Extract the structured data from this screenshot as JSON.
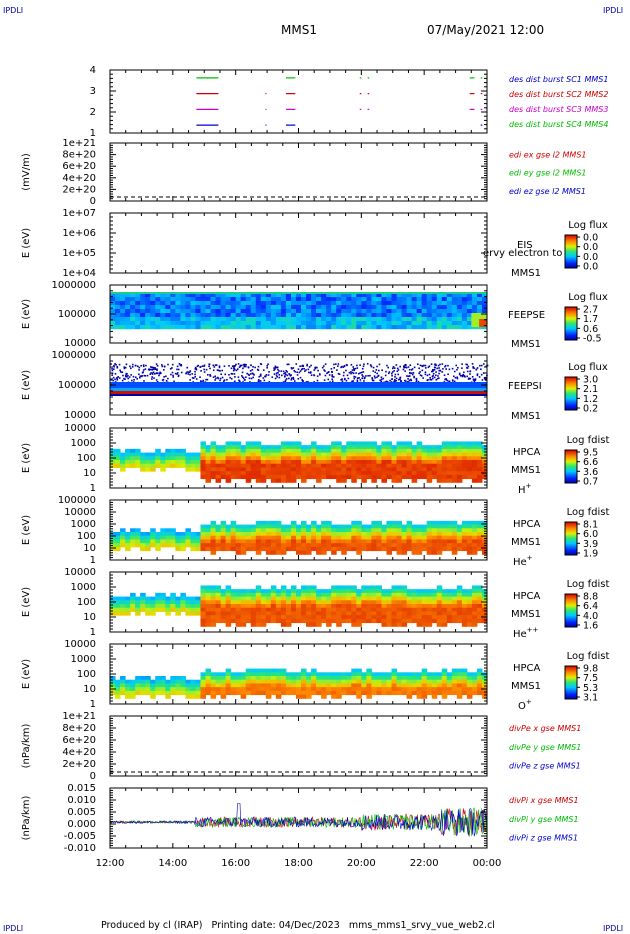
{
  "page": {
    "corner_label": "IPDLI",
    "spacecraft": "MMS1",
    "datetime": "07/May/2021 12:00",
    "footer": "Produced by cl (IRAP)   Printing date: 04/Dec/2023   mms_mms1_srvy_vue_web2.cl"
  },
  "colors": {
    "mms1": "#0000cc",
    "mms2": "#cc0000",
    "mms3": "#cc00cc",
    "mms4": "#00bb00"
  },
  "chart_data": [
    {
      "type": "line",
      "id": "burst",
      "ylabel": "",
      "yticks": [
        "1",
        "2",
        "3",
        "4"
      ],
      "ylim": [
        0.5,
        4.5
      ],
      "legend": [
        {
          "text": "des dist burst SC1 MMS1",
          "color": "#0000cc"
        },
        {
          "text": "des dist burst SC2 MMS2",
          "color": "#cc0000"
        },
        {
          "text": "des dist burst SC3 MMS3",
          "color": "#cc00cc"
        },
        {
          "text": "des dist burst SC4 MMS4",
          "color": "#00bb00"
        }
      ],
      "series": [
        {
          "level": 4,
          "color": "#00bb00",
          "intervals": [
            [
              14.75,
              15.45
            ],
            [
              17.6,
              17.9
            ],
            [
              19.95,
              20.0
            ],
            [
              20.2,
              20.25
            ],
            [
              23.45,
              23.6
            ],
            [
              23.8,
              23.85
            ]
          ]
        },
        {
          "level": 3,
          "color": "#cc0000",
          "intervals": [
            [
              14.75,
              15.45
            ],
            [
              16.95,
              16.98
            ],
            [
              17.6,
              17.9
            ],
            [
              19.95,
              20.0
            ],
            [
              20.2,
              20.25
            ],
            [
              23.45,
              23.6
            ],
            [
              23.8,
              23.85
            ]
          ]
        },
        {
          "level": 2,
          "color": "#cc00cc",
          "intervals": [
            [
              14.75,
              15.45
            ],
            [
              16.95,
              16.98
            ],
            [
              17.6,
              17.9
            ],
            [
              19.95,
              20.0
            ],
            [
              20.2,
              20.25
            ],
            [
              23.45,
              23.6
            ],
            [
              23.8,
              23.85
            ]
          ]
        },
        {
          "level": 1,
          "color": "#0000cc",
          "intervals": [
            [
              14.75,
              15.45
            ],
            [
              16.95,
              16.98
            ],
            [
              17.6,
              17.9
            ],
            [
              23.8,
              23.85
            ]
          ]
        }
      ]
    },
    {
      "type": "line",
      "id": "edi",
      "ylabel": "(mV/m)",
      "yticks": [
        "0",
        "2e+20",
        "4e+20",
        "6e+20",
        "8e+20",
        "1e+21"
      ],
      "ylim": [
        0,
        1e+21
      ],
      "zero_line": true,
      "legend": [
        {
          "text": "edi ex gse l2 MMS1",
          "color": "#cc0000"
        },
        {
          "text": "edi ey gse l2 MMS1",
          "color": "#00bb00"
        },
        {
          "text": "edi ez gse l2 MMS1",
          "color": "#0000cc"
        }
      ]
    },
    {
      "type": "heatmap",
      "id": "eis",
      "ylabel": "E (eV)",
      "yticks": [
        "1e+04",
        "1e+05",
        "1e+06",
        "1e+07"
      ],
      "instrument": "EIS",
      "spacecraft_label": "MMS1",
      "species": "",
      "extra_text": "ervy electron to",
      "colorbar": {
        "title": "Log flux",
        "ticks": [
          "0.0",
          "0.0",
          "0.0",
          "0.0"
        ]
      }
    },
    {
      "type": "heatmap",
      "id": "feeps-e",
      "ylabel": "E (eV)",
      "yticks": [
        "10000",
        "100000",
        "1000000"
      ],
      "instrument": "FEEPSE",
      "spacecraft_label": "MMS1",
      "species": "",
      "colorbar": {
        "title": "Log flux",
        "ticks": [
          "2.7",
          "1.7",
          "0.6",
          "-0.5"
        ]
      }
    },
    {
      "type": "heatmap",
      "id": "feeps-i",
      "ylabel": "E (eV)",
      "yticks": [
        "10000",
        "100000",
        "1000000"
      ],
      "instrument": "FEEPSI",
      "spacecraft_label": "MMS1",
      "species": "",
      "colorbar": {
        "title": "Log flux",
        "ticks": [
          "3.0",
          "2.1",
          "1.2",
          "0.2"
        ]
      }
    },
    {
      "type": "heatmap",
      "id": "hpca-h",
      "ylabel": "E (eV)",
      "yticks": [
        "1",
        "10",
        "100",
        "1000",
        "10000"
      ],
      "instrument": "HPCA",
      "spacecraft_label": "MMS1",
      "species": "H",
      "species_sup": "+",
      "colorbar": {
        "title": "Log fdist",
        "ticks": [
          "9.5",
          "6.6",
          "3.6",
          "0.7"
        ]
      }
    },
    {
      "type": "heatmap",
      "id": "hpca-he1",
      "ylabel": "E (eV)",
      "yticks": [
        "1",
        "10",
        "100",
        "1000",
        "10000",
        "100000"
      ],
      "instrument": "HPCA",
      "spacecraft_label": "MMS1",
      "species": "He",
      "species_sup": "+",
      "colorbar": {
        "title": "Log fdist",
        "ticks": [
          "8.1",
          "6.0",
          "3.9",
          "1.9"
        ]
      }
    },
    {
      "type": "heatmap",
      "id": "hpca-he2",
      "ylabel": "E (eV)",
      "yticks": [
        "1",
        "10",
        "100",
        "1000",
        "10000"
      ],
      "instrument": "HPCA",
      "spacecraft_label": "MMS1",
      "species": "He",
      "species_sup": "++",
      "colorbar": {
        "title": "Log fdist",
        "ticks": [
          "8.8",
          "6.4",
          "4.0",
          "1.6"
        ]
      }
    },
    {
      "type": "heatmap",
      "id": "hpca-o",
      "ylabel": "E (eV)",
      "yticks": [
        "1",
        "10",
        "100",
        "1000",
        "10000"
      ],
      "instrument": "HPCA",
      "spacecraft_label": "MMS1",
      "species": "O",
      "species_sup": "+",
      "colorbar": {
        "title": "Log fdist",
        "ticks": [
          "9.8",
          "7.5",
          "5.3",
          "3.1"
        ]
      }
    },
    {
      "type": "line",
      "id": "divpe",
      "ylabel": "(nPa/km)",
      "yticks": [
        "0",
        "2e+20",
        "4e+20",
        "6e+20",
        "8e+20",
        "1e+21"
      ],
      "ylim": [
        0,
        1e+21
      ],
      "zero_line": true,
      "legend": [
        {
          "text": "divPe x gse MMS1",
          "color": "#cc0000"
        },
        {
          "text": "divPe y gse MMS1",
          "color": "#00bb00"
        },
        {
          "text": "divPe z gse MMS1",
          "color": "#0000cc"
        }
      ]
    },
    {
      "type": "line",
      "id": "divpi",
      "ylabel": "(nPa/km)",
      "yticks": [
        "-0.010",
        "-0.005",
        "0.000",
        "0.005",
        "0.010",
        "0.015"
      ],
      "ylim": [
        -0.0125,
        0.0165
      ],
      "legend": [
        {
          "text": "divPi x gse MMS1",
          "color": "#cc0000"
        },
        {
          "text": "divPi y gse MMS1",
          "color": "#00bb00"
        },
        {
          "text": "divPi z gse MMS1",
          "color": "#0000cc"
        }
      ]
    }
  ],
  "x_axis": {
    "ticks": [
      "12:00",
      "14:00",
      "16:00",
      "18:00",
      "20:00",
      "22:00",
      "00:00"
    ],
    "range_hours": [
      12,
      24
    ]
  }
}
